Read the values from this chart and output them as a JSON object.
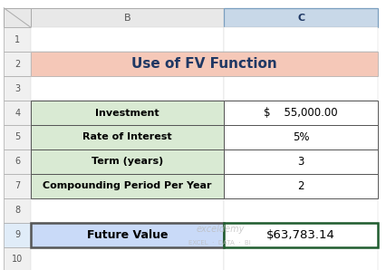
{
  "title": "Use of FV Function",
  "title_bg": "#F5C8B8",
  "title_color": "#1F3864",
  "rows": [
    {
      "label": "Investment",
      "value": "$    55,000.00",
      "label_bg": "#D9EAD3",
      "value_bg": "#FFFFFF"
    },
    {
      "label": "Rate of Interest",
      "value": "5%",
      "label_bg": "#D9EAD3",
      "value_bg": "#FFFFFF"
    },
    {
      "label": "Term (years)",
      "value": "3",
      "label_bg": "#D9EAD3",
      "value_bg": "#FFFFFF"
    },
    {
      "label": "Compounding Period Per Year",
      "value": "2",
      "label_bg": "#D9EAD3",
      "value_bg": "#FFFFFF"
    }
  ],
  "future_value_label": "Future Value",
  "future_value": "$63,783.14",
  "fv_label_bg": "#C9DAF8",
  "fv_value_bg": "#FFFFFF",
  "fv_border_color": "#1F5C2E",
  "watermark_line1": "exceldemy",
  "watermark_line2": "EXCEL  ·  DATA  ·  BI",
  "watermark_color": "#BBBBBB"
}
